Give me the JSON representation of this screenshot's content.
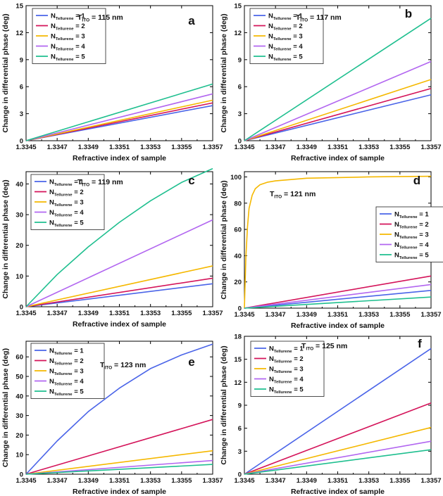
{
  "figure": {
    "series_prefix": "N",
    "series_subscript": "Tellurene",
    "thickness_prefix": "T",
    "thickness_subscript": "ITO",
    "colors": [
      "#4a64e8",
      "#d4145a",
      "#f5b800",
      "#b266f0",
      "#1fbf8f"
    ]
  },
  "chart_data": [
    {
      "type": "line",
      "panel_letter": "a",
      "thickness_text": "= 115 nm",
      "xlabel": "Refractive index of sample",
      "ylabel": "Change in differential phase (deg)",
      "xlim": [
        1.3345,
        1.3357
      ],
      "ylim": [
        0,
        15
      ],
      "x_ticks": [
        "1.3345",
        "1.3347",
        "1.3349",
        "1.3351",
        "1.3353",
        "1.3355",
        "1.3357"
      ],
      "y_ticks": [
        "0",
        "3",
        "6",
        "9",
        "12",
        "15"
      ],
      "legend_position": "top-left",
      "series": [
        {
          "name": "= 1",
          "x": [
            1.3345,
            1.3357
          ],
          "y": [
            0,
            3.9
          ]
        },
        {
          "name": "= 2",
          "x": [
            1.3345,
            1.3357
          ],
          "y": [
            0,
            4.2
          ]
        },
        {
          "name": "= 3",
          "x": [
            1.3345,
            1.3357
          ],
          "y": [
            0,
            4.5
          ]
        },
        {
          "name": "= 4",
          "x": [
            1.3345,
            1.3357
          ],
          "y": [
            0,
            5.2
          ]
        },
        {
          "name": "= 5",
          "x": [
            1.3345,
            1.3357
          ],
          "y": [
            0,
            6.3
          ]
        }
      ]
    },
    {
      "type": "line",
      "panel_letter": "b",
      "thickness_text": "= 117 nm",
      "xlabel": "Refractive index of sample",
      "ylabel": "Change in differential phase (deg)",
      "xlim": [
        1.3345,
        1.3357
      ],
      "ylim": [
        0,
        15
      ],
      "x_ticks": [
        "1.3345",
        "1.3347",
        "1.3349",
        "1.3351",
        "1.3353",
        "1.3355",
        "1.3357"
      ],
      "y_ticks": [
        "0",
        "3",
        "6",
        "9",
        "12",
        "15"
      ],
      "legend_position": "top-left",
      "series": [
        {
          "name": "= 1",
          "x": [
            1.3345,
            1.3357
          ],
          "y": [
            0,
            5.1
          ]
        },
        {
          "name": "= 2",
          "x": [
            1.3345,
            1.3357
          ],
          "y": [
            0,
            5.8
          ]
        },
        {
          "name": "= 3",
          "x": [
            1.3345,
            1.3357
          ],
          "y": [
            0,
            6.8
          ]
        },
        {
          "name": "= 4",
          "x": [
            1.3345,
            1.3357
          ],
          "y": [
            0,
            8.8
          ]
        },
        {
          "name": "= 5",
          "x": [
            1.3345,
            1.3357
          ],
          "y": [
            0,
            13.6
          ]
        }
      ]
    },
    {
      "type": "line",
      "panel_letter": "c",
      "thickness_text": "= 119 nm",
      "xlabel": "Refractive index of sample",
      "ylabel": "Change in differential phase (deg)",
      "xlim": [
        1.3345,
        1.3357
      ],
      "ylim": [
        0,
        44
      ],
      "x_ticks": [
        "1.3345",
        "1.3347",
        "1.3349",
        "1.3351",
        "1.3353",
        "1.3355",
        "1.3357"
      ],
      "y_ticks": [
        "0",
        "10",
        "20",
        "30",
        "40"
      ],
      "legend_position": "top-left",
      "series": [
        {
          "name": "= 1",
          "x": [
            1.3345,
            1.3357
          ],
          "y": [
            0,
            7.5
          ]
        },
        {
          "name": "= 2",
          "x": [
            1.3345,
            1.3357
          ],
          "y": [
            0,
            9.3
          ]
        },
        {
          "name": "= 3",
          "x": [
            1.3345,
            1.3357
          ],
          "y": [
            0,
            13.3
          ]
        },
        {
          "name": "= 4",
          "x": [
            1.3345,
            1.3357
          ],
          "y": [
            0,
            28.3
          ]
        },
        {
          "name": "= 5",
          "x": [
            1.3345,
            1.3347,
            1.3349,
            1.3351,
            1.3353,
            1.3355,
            1.3357
          ],
          "y": [
            0,
            10.5,
            19.5,
            27.5,
            34.5,
            40.5,
            45
          ]
        }
      ]
    },
    {
      "type": "line",
      "panel_letter": "d",
      "thickness_text": "= 121 nm",
      "xlabel": "Refractive index of sample",
      "ylabel": "Change in differential phase (deg)",
      "xlim": [
        1.3345,
        1.3357
      ],
      "ylim": [
        0,
        104
      ],
      "x_ticks": [
        "1.3345",
        "1.3347",
        "1.3349",
        "1.3351",
        "1.3353",
        "1.3355",
        "1.3357"
      ],
      "y_ticks": [
        "0",
        "20",
        "40",
        "60",
        "80",
        "100"
      ],
      "legend_position": "right",
      "series": [
        {
          "name": "= 1",
          "x": [
            1.3345,
            1.3357
          ],
          "y": [
            0,
            13.5
          ]
        },
        {
          "name": "= 2",
          "x": [
            1.3345,
            1.3357
          ],
          "y": [
            0,
            24.5
          ]
        },
        {
          "name": "= 3",
          "x": [
            1.3345,
            1.33451,
            1.33452,
            1.33453,
            1.33455,
            1.33457,
            1.3346,
            1.33465,
            1.3347,
            1.3348,
            1.3349,
            1.3351,
            1.3353,
            1.3355,
            1.3357
          ],
          "y": [
            0,
            40,
            62,
            76,
            86,
            91,
            94,
            96,
            97,
            98,
            99,
            99.5,
            100,
            100.3,
            100.5
          ]
        },
        {
          "name": "= 4",
          "x": [
            1.3345,
            1.3357
          ],
          "y": [
            0,
            18
          ]
        },
        {
          "name": "= 5",
          "x": [
            1.3345,
            1.3357
          ],
          "y": [
            0,
            8.5
          ]
        }
      ]
    },
    {
      "type": "line",
      "panel_letter": "e",
      "thickness_text": "= 123 nm",
      "xlabel": "Refractive index of sample",
      "ylabel": "Change in differential phase (deg)",
      "xlim": [
        1.3345,
        1.3357
      ],
      "ylim": [
        0,
        68
      ],
      "x_ticks": [
        "1.3345",
        "1.3347",
        "1.3349",
        "1.3351",
        "1.3353",
        "1.3355",
        "1.3357"
      ],
      "y_ticks": [
        "0",
        "10",
        "20",
        "30",
        "40",
        "50",
        "60"
      ],
      "legend_position": "top-left",
      "series": [
        {
          "name": "= 1",
          "x": [
            1.3345,
            1.3347,
            1.3349,
            1.3351,
            1.3353,
            1.3355,
            1.3357
          ],
          "y": [
            0,
            17,
            32,
            44,
            54,
            61,
            66.5
          ]
        },
        {
          "name": "= 2",
          "x": [
            1.3345,
            1.3357
          ],
          "y": [
            0,
            28
          ]
        },
        {
          "name": "= 3",
          "x": [
            1.3345,
            1.3357
          ],
          "y": [
            0,
            12
          ]
        },
        {
          "name": "= 4",
          "x": [
            1.3345,
            1.3357
          ],
          "y": [
            0,
            7
          ]
        },
        {
          "name": "= 5",
          "x": [
            1.3345,
            1.3357
          ],
          "y": [
            0,
            5
          ]
        }
      ]
    },
    {
      "type": "line",
      "panel_letter": "f",
      "thickness_text": "= 125 nm",
      "xlabel": "Refractive index of sample",
      "ylabel": "Change in differential phase (deg)",
      "xlim": [
        1.3345,
        1.3357
      ],
      "ylim": [
        0,
        18
      ],
      "x_ticks": [
        "1.3345",
        "1.3347",
        "1.3349",
        "1.3351",
        "1.3353",
        "1.3355",
        "1.3357"
      ],
      "y_ticks": [
        "0",
        "3",
        "6",
        "9",
        "12",
        "15",
        "18"
      ],
      "legend_position": "top-left",
      "series": [
        {
          "name": "= 1",
          "x": [
            1.3345,
            1.3357
          ],
          "y": [
            0,
            16.4
          ]
        },
        {
          "name": "= 2",
          "x": [
            1.3345,
            1.3357
          ],
          "y": [
            0,
            9.3
          ]
        },
        {
          "name": "= 3",
          "x": [
            1.3345,
            1.3357
          ],
          "y": [
            0,
            6.1
          ]
        },
        {
          "name": "= 4",
          "x": [
            1.3345,
            1.3357
          ],
          "y": [
            0,
            4.3
          ]
        },
        {
          "name": "= 5",
          "x": [
            1.3345,
            1.3357
          ],
          "y": [
            0,
            3.2
          ]
        }
      ]
    }
  ]
}
